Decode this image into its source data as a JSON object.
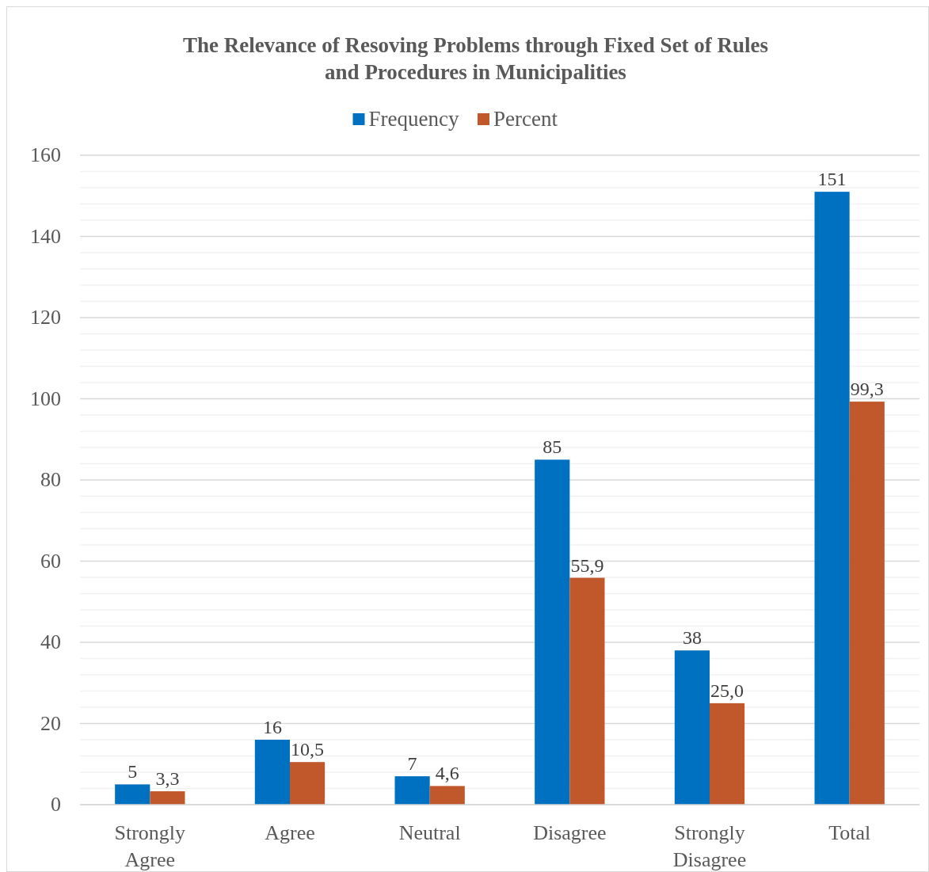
{
  "chart_data": {
    "type": "bar",
    "title": "The Relevance of Resoving Problems through Fixed Set of Rules and Procedures in Municipalities",
    "categories": [
      "Strongly Agree",
      "Agree",
      "Neutral",
      "Disagree",
      "Strongly Disagree",
      "Total"
    ],
    "series": [
      {
        "name": "Frequency",
        "color": "#0070c0",
        "values": [
          5,
          16,
          7,
          85,
          38,
          151
        ],
        "value_labels": [
          "5",
          "16",
          "7",
          "85",
          "38",
          "151"
        ]
      },
      {
        "name": "Percent",
        "color": "#c0582c",
        "values": [
          3.3,
          10.5,
          4.6,
          55.9,
          25.0,
          99.3
        ],
        "value_labels": [
          "3,3",
          "10,5",
          "4,6",
          "55,9",
          "25,0",
          "99,3"
        ]
      }
    ],
    "ylim": [
      0,
      160
    ],
    "yticks": [
      0,
      {
        "value": 4,
        "label": null
      },
      {
        "value": 8,
        "label": null
      },
      {
        "value": 12,
        "label": null
      },
      {
        "value": 16,
        "label": null
      },
      20,
      {
        "value": 24,
        "label": null
      },
      {
        "value": 28,
        "label": null
      },
      {
        "value": 32,
        "label": null
      },
      {
        "value": 36,
        "label": null
      },
      40,
      {
        "value": 44,
        "label": null
      },
      {
        "value": 48,
        "label": null
      },
      {
        "value": 52,
        "label": null
      },
      {
        "value": 56,
        "label": null
      },
      60,
      {
        "value": 64,
        "label": null
      },
      {
        "value": 68,
        "label": null
      },
      {
        "value": 72,
        "label": null
      },
      {
        "value": 76,
        "label": null
      },
      80,
      {
        "value": 84,
        "label": null
      },
      {
        "value": 88,
        "label": null
      },
      {
        "value": 92,
        "label": null
      },
      {
        "value": 96,
        "label": null
      },
      100,
      {
        "value": 104,
        "label": null
      },
      {
        "value": 108,
        "label": null
      },
      {
        "value": 112,
        "label": null
      },
      {
        "value": 116,
        "label": null
      },
      120,
      {
        "value": 124,
        "label": null
      },
      {
        "value": 128,
        "label": null
      },
      {
        "value": 132,
        "label": null
      },
      {
        "value": 136,
        "label": null
      },
      140,
      {
        "value": 144,
        "label": null
      },
      {
        "value": 148,
        "label": null
      },
      {
        "value": 152,
        "label": null
      },
      {
        "value": 156,
        "label": null
      },
      160
    ],
    "grid": "y",
    "legend": "top"
  }
}
